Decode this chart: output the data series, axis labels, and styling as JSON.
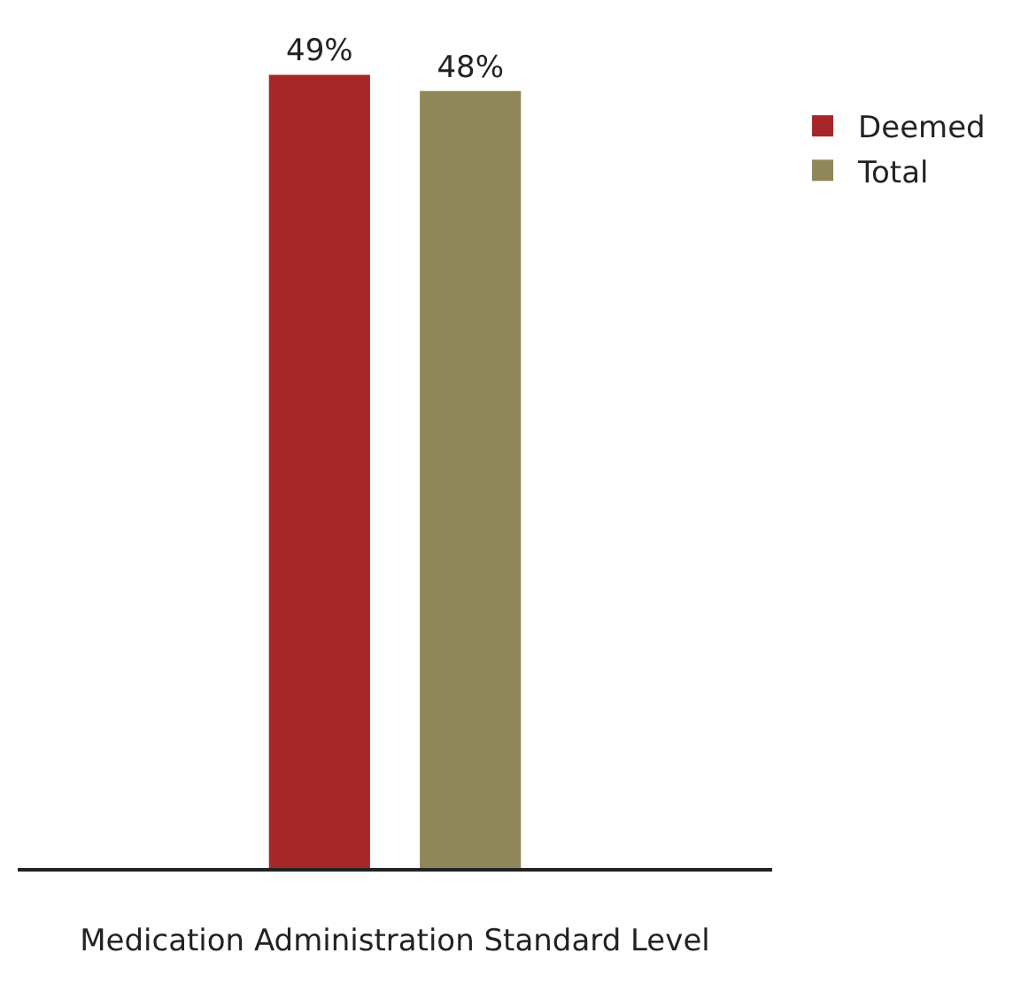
{
  "chart_data": {
    "type": "bar",
    "xlabel": "Medication Administration Standard Level",
    "categories": [
      null
    ],
    "series": [
      {
        "name": "Deemed",
        "color": "#a6262a",
        "values": [
          49
        ],
        "value_labels": [
          "49%"
        ]
      },
      {
        "name": "Total",
        "color": "#8f8757",
        "values": [
          48
        ],
        "value_labels": [
          "48%"
        ]
      }
    ],
    "legend": "top right",
    "grid": false
  }
}
